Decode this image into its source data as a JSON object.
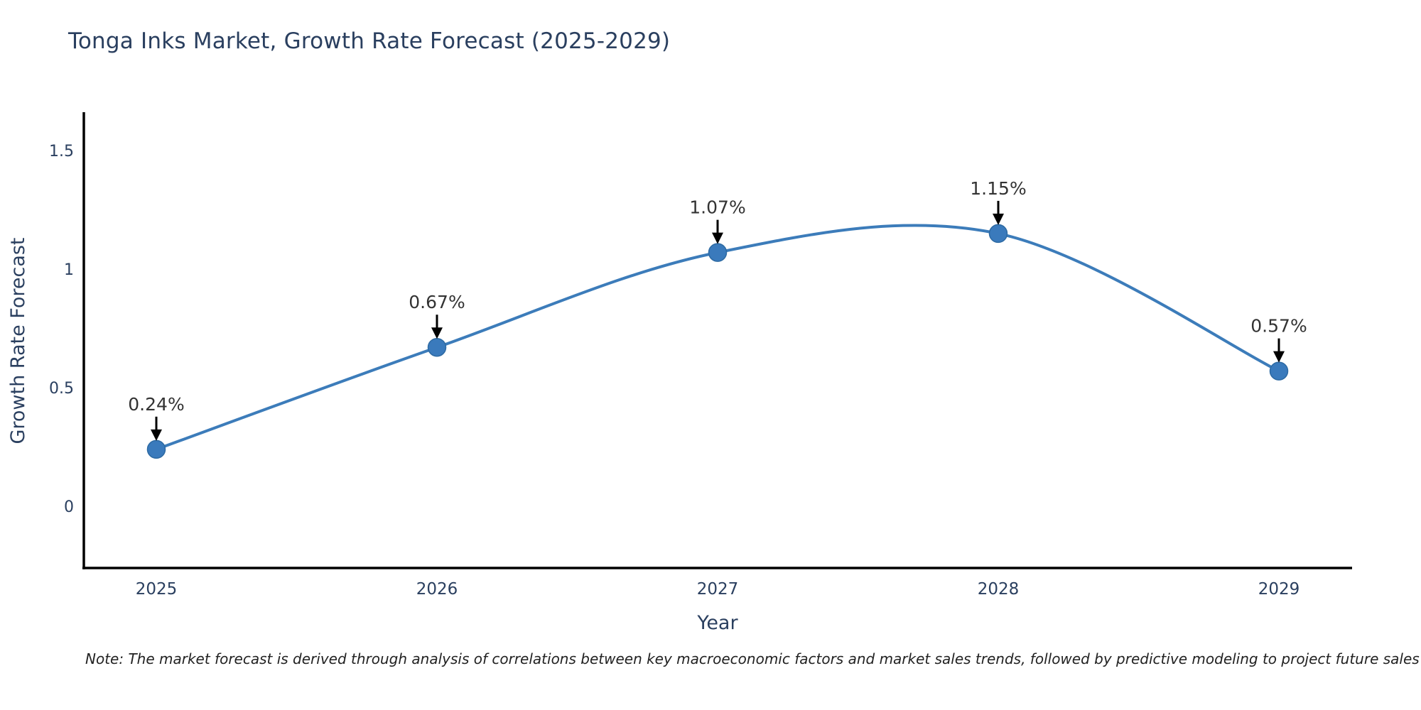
{
  "title": "Tonga Inks Market, Growth Rate Forecast (2025-2029)",
  "note": "Note: The market forecast is derived through analysis of correlations between key macroeconomic factors and market sales trends, followed by predictive modeling to project future sales",
  "chart_data": {
    "type": "line",
    "title": "Tonga Inks Market, Growth Rate Forecast (2025-2029)",
    "xlabel": "Year",
    "ylabel": "Growth Rate Forecast",
    "line_shape": "spline",
    "grid": false,
    "legend": "none",
    "x": [
      2025,
      2026,
      2027,
      2028,
      2029
    ],
    "xtick_labels": [
      "2025",
      "2026",
      "2027",
      "2028",
      "2029"
    ],
    "values": [
      0.24,
      0.67,
      1.07,
      1.15,
      0.57
    ],
    "point_labels": [
      "0.24%",
      "0.67%",
      "1.07%",
      "1.15%",
      "0.57%"
    ],
    "yticks": [
      0,
      0.5,
      1,
      1.5
    ],
    "ytick_labels": [
      "0",
      "0.5",
      "1",
      "1.5"
    ],
    "ylim": [
      -0.26,
      1.66
    ],
    "xlim": [
      2024.74,
      2029.26
    ],
    "colors": {
      "line": "#3c7cba",
      "marker_fill": "#3a7abc",
      "marker_edge": "#2d6aa3",
      "axis": "#000000",
      "axis_text": "#2a3f5f",
      "annotation_text": "#333333",
      "annotation_arrow": "#000000",
      "background": "#ffffff"
    }
  }
}
